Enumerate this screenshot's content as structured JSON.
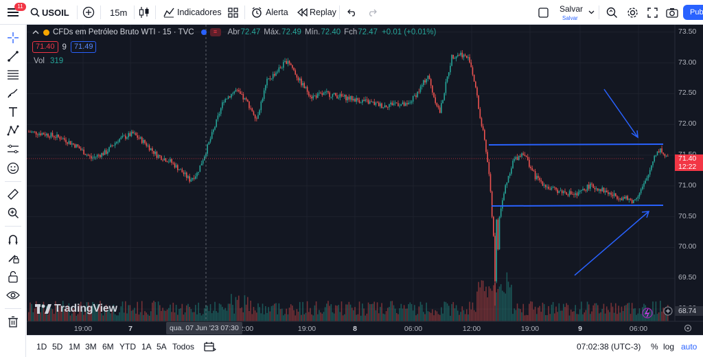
{
  "header": {
    "notifications": "11",
    "symbol": "USOIL",
    "interval": "15m",
    "indicators_label": "Indicadores",
    "alert_label": "Alerta",
    "replay_label": "Replay",
    "save_label": "Salvar",
    "save_sublabel": "Salvar",
    "publish_label": "Pub"
  },
  "legend": {
    "title": "CFDs em Petróleo Bruto WTI · 15 · TVC",
    "open_label": "Abr",
    "open": "72.47",
    "high_label": "Máx.",
    "high": "72.49",
    "low_label": "Mín.",
    "low": "72.40",
    "close_label": "Fch",
    "close": "72.47",
    "change": "+0.01 (+0.01%)",
    "ma_red": "71.40",
    "ma_length": "9",
    "ma_blue": "71.49",
    "volume_label": "Vol",
    "volume": "319"
  },
  "price_axis": {
    "ticks": [
      "73.50",
      "73.00",
      "72.50",
      "72.00",
      "71.50",
      "71.00",
      "70.50",
      "70.00",
      "69.50",
      "69.00"
    ],
    "last_price": "71.40",
    "countdown": "12:22",
    "volume_value": "68.74"
  },
  "time_axis": {
    "ticks": [
      {
        "label": "19:00",
        "bold": false
      },
      {
        "label": "7",
        "bold": true
      },
      {
        "label": "12:00",
        "bold": false
      },
      {
        "label": "19:00",
        "bold": false
      },
      {
        "label": "8",
        "bold": true
      },
      {
        "label": "06:00",
        "bold": false
      },
      {
        "label": "12:00",
        "bold": false
      },
      {
        "label": "19:00",
        "bold": false
      },
      {
        "label": "9",
        "bold": true
      },
      {
        "label": "06:00",
        "bold": false
      }
    ],
    "crosshair_time": "qua. 07 Jun '23   07:30"
  },
  "watermark": "TradingView",
  "footer": {
    "ranges": [
      "1D",
      "5D",
      "1M",
      "3M",
      "6M",
      "YTD",
      "1A",
      "5A",
      "Todos"
    ],
    "clock": "07:02:38 (UTC-3)",
    "percent_label": "%",
    "log_label": "log",
    "auto_label": "auto"
  },
  "colors": {
    "up": "#26a69a",
    "down": "#ef5350",
    "background": "#131722",
    "annotation": "#2962ff",
    "accent": "#2962ff"
  },
  "chart_data": {
    "type": "candlestick",
    "symbol": "USOIL",
    "interval": "15",
    "y_range": [
      68.8,
      73.62
    ],
    "annotations": {
      "resistance_level": 71.63,
      "support_level": 70.56,
      "arrows": [
        "down-right toward resistance line",
        "up-right toward support line"
      ]
    },
    "price_path": [
      [
        0,
        71.88
      ],
      [
        10,
        71.85
      ],
      [
        22,
        71.78
      ],
      [
        32,
        71.65
      ],
      [
        42,
        71.45
      ],
      [
        52,
        71.55
      ],
      [
        60,
        71.75
      ],
      [
        70,
        71.85
      ],
      [
        78,
        71.7
      ],
      [
        86,
        71.5
      ],
      [
        95,
        71.4
      ],
      [
        102,
        71.25
      ],
      [
        108,
        71.1
      ],
      [
        113,
        71.2
      ],
      [
        118,
        71.5
      ],
      [
        124,
        71.9
      ],
      [
        131,
        72.4
      ],
      [
        139,
        72.55
      ],
      [
        147,
        72.35
      ],
      [
        153,
        72.1
      ],
      [
        160,
        72.7
      ],
      [
        168,
        72.9
      ],
      [
        174,
        73.05
      ],
      [
        182,
        72.7
      ],
      [
        190,
        72.45
      ],
      [
        200,
        72.5
      ],
      [
        210,
        72.45
      ],
      [
        220,
        72.4
      ],
      [
        230,
        72.35
      ],
      [
        238,
        72.3
      ],
      [
        246,
        72.35
      ],
      [
        254,
        72.3
      ],
      [
        262,
        72.55
      ],
      [
        268,
        72.8
      ],
      [
        272,
        72.45
      ],
      [
        276,
        72.2
      ],
      [
        280,
        72.65
      ],
      [
        284,
        73.1
      ],
      [
        290,
        73.15
      ],
      [
        296,
        73.05
      ],
      [
        300,
        72.6
      ],
      [
        303,
        72.1
      ],
      [
        306,
        71.75
      ],
      [
        309,
        71.2
      ],
      [
        312,
        70.2
      ],
      [
        314,
        69.45
      ],
      [
        316,
        70.5
      ],
      [
        320,
        71.0
      ],
      [
        325,
        71.4
      ],
      [
        332,
        71.55
      ],
      [
        340,
        71.15
      ],
      [
        350,
        70.95
      ],
      [
        360,
        70.9
      ],
      [
        368,
        70.85
      ],
      [
        376,
        71.0
      ],
      [
        384,
        70.95
      ],
      [
        392,
        70.85
      ],
      [
        400,
        70.8
      ],
      [
        406,
        70.75
      ],
      [
        410,
        70.9
      ],
      [
        415,
        71.1
      ],
      [
        420,
        71.5
      ],
      [
        424,
        71.6
      ],
      [
        428,
        71.45
      ]
    ]
  }
}
